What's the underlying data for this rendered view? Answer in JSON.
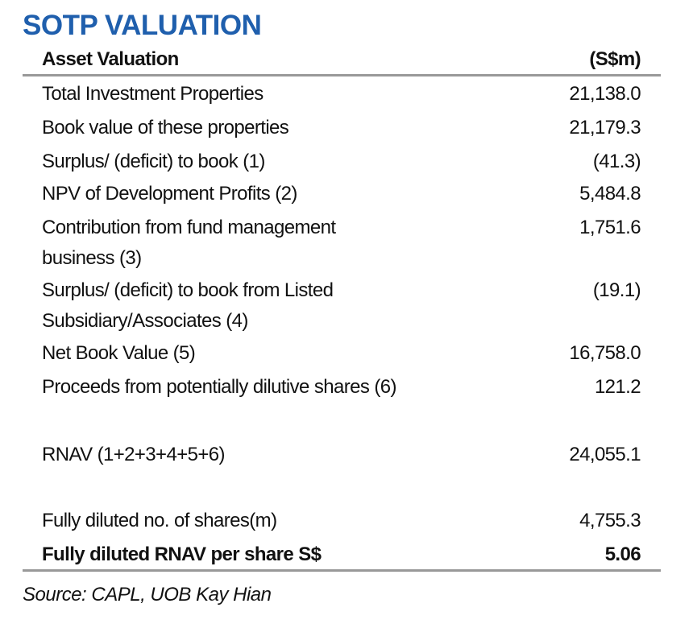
{
  "title": "SOTP VALUATION",
  "table": {
    "header": [
      "Asset Valuation",
      "(S$m)"
    ],
    "rows": [
      [
        "Total Investment Properties",
        "21,138.0"
      ],
      [
        "Book value of these properties",
        "21,179.3"
      ],
      [
        "Surplus/ (deficit) to book (1)",
        "(41.3)"
      ],
      [
        "NPV of Development Profits (2)",
        "5,484.8"
      ],
      [
        "Contribution from fund management business (3)",
        "1,751.6"
      ],
      [
        "Surplus/ (deficit) to book from Listed Subsidiary/Associates (4)",
        "(19.1)"
      ],
      [
        "Net Book Value (5)",
        "16,758.0"
      ],
      [
        "Proceeds from potentially dilutive shares (6)",
        "121.2"
      ],
      [
        "RNAV (1+2+3+4+5+6)",
        "24,055.1"
      ],
      [
        "Fully diluted no. of shares(m)",
        "4,755.3"
      ],
      [
        "Fully diluted RNAV per share S$",
        "5.06"
      ]
    ]
  },
  "source": "Source: CAPL, UOB Kay Hian"
}
